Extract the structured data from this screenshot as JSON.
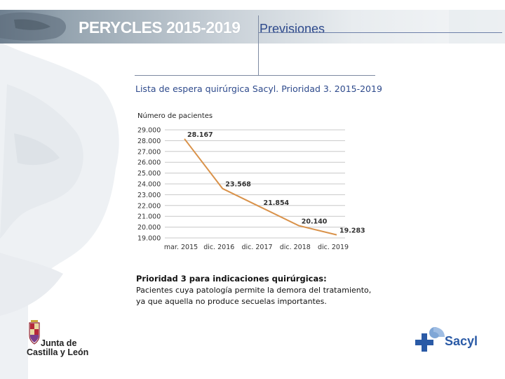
{
  "header": {
    "brand": "PERYCLES 2015-2019",
    "section": "Previsiones"
  },
  "slide": {
    "subtitle": "Lista de espera quirúrgica Sacyl. Prioridad 3. 2015-2019",
    "note_title": "Prioridad 3 para indicaciones quirúrgicas:",
    "note_line1": "Pacientes cuya patología permite la demora del tratamiento,",
    "note_line2": "ya que aquella no produce secuelas importantes."
  },
  "footer": {
    "jcyl_line1": "Junta de",
    "jcyl_line2": "Castilla y León",
    "sacyl": "Sacyl"
  },
  "colors": {
    "line": "#d9924a",
    "grid": "#c8c8c8",
    "accent_blue": "#2e4a8c",
    "sacyl_blue": "#2a5aa6"
  },
  "chart_data": {
    "type": "line",
    "ylabel": "Número de pacientes",
    "categories": [
      "mar. 2015",
      "dic. 2016",
      "dic. 2017",
      "dic. 2018",
      "dic. 2019"
    ],
    "values": [
      28167,
      23568,
      21854,
      20140,
      19283
    ],
    "data_labels": [
      "28.167",
      "23.568",
      "21.854",
      "20.140",
      "19.283"
    ],
    "yticks": [
      "19.000",
      "20.000",
      "21.000",
      "22.000",
      "23.000",
      "24.000",
      "25.000",
      "26.000",
      "27.000",
      "28.000",
      "29.000"
    ],
    "ylim": [
      19000,
      29000
    ],
    "grid": true
  }
}
